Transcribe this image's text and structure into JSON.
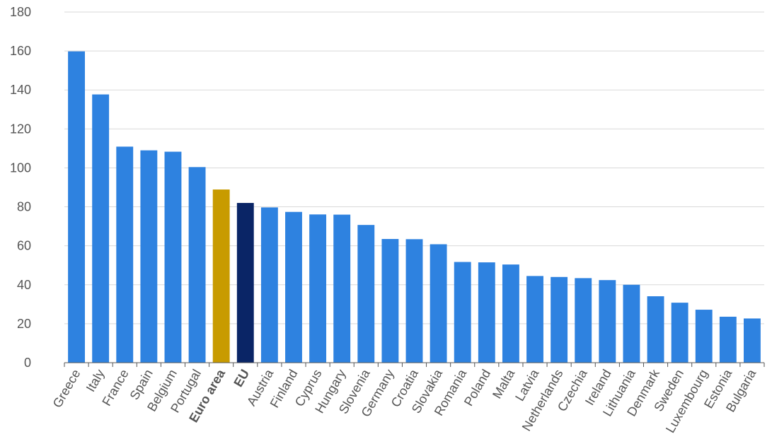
{
  "chart_data": {
    "type": "bar",
    "title": "",
    "xlabel": "",
    "ylabel": "",
    "ylim": [
      0,
      180
    ],
    "yticks": [
      0,
      20,
      40,
      60,
      80,
      100,
      120,
      140,
      160,
      180
    ],
    "grid": true,
    "legend": "none",
    "categories": [
      "Greece",
      "Italy",
      "France",
      "Spain",
      "Belgium",
      "Portugal",
      "Euro area",
      "EU",
      "Austria",
      "Finland",
      "Cyprus",
      "Hungary",
      "Slovenia",
      "Germany",
      "Croatia",
      "Slovakia",
      "Romania",
      "Poland",
      "Malta",
      "Latvia",
      "Netherlands",
      "Czechia",
      "Ireland",
      "Lithuania",
      "Denmark",
      "Sweden",
      "Luxembourg",
      "Estonia",
      "Bulgaria"
    ],
    "values": [
      159.8,
      137.7,
      110.9,
      109.0,
      108.3,
      100.4,
      88.9,
      82.0,
      79.7,
      77.4,
      76.1,
      76.0,
      70.7,
      63.5,
      63.4,
      60.8,
      51.7,
      51.5,
      50.4,
      44.5,
      44.0,
      43.4,
      42.4,
      40.0,
      34.1,
      30.8,
      27.2,
      23.6,
      22.7
    ],
    "highlight": {
      "Euro area": "#c89b00",
      "EU": "#0a2566"
    },
    "bold_labels": [
      "Euro area",
      "EU"
    ]
  },
  "colors": {
    "bar_default": "#2e82e0",
    "euro_area": "#c89b00",
    "eu": "#0a2566",
    "grid": "#d9d9d9",
    "axis": "#555555",
    "text": "#555555"
  }
}
